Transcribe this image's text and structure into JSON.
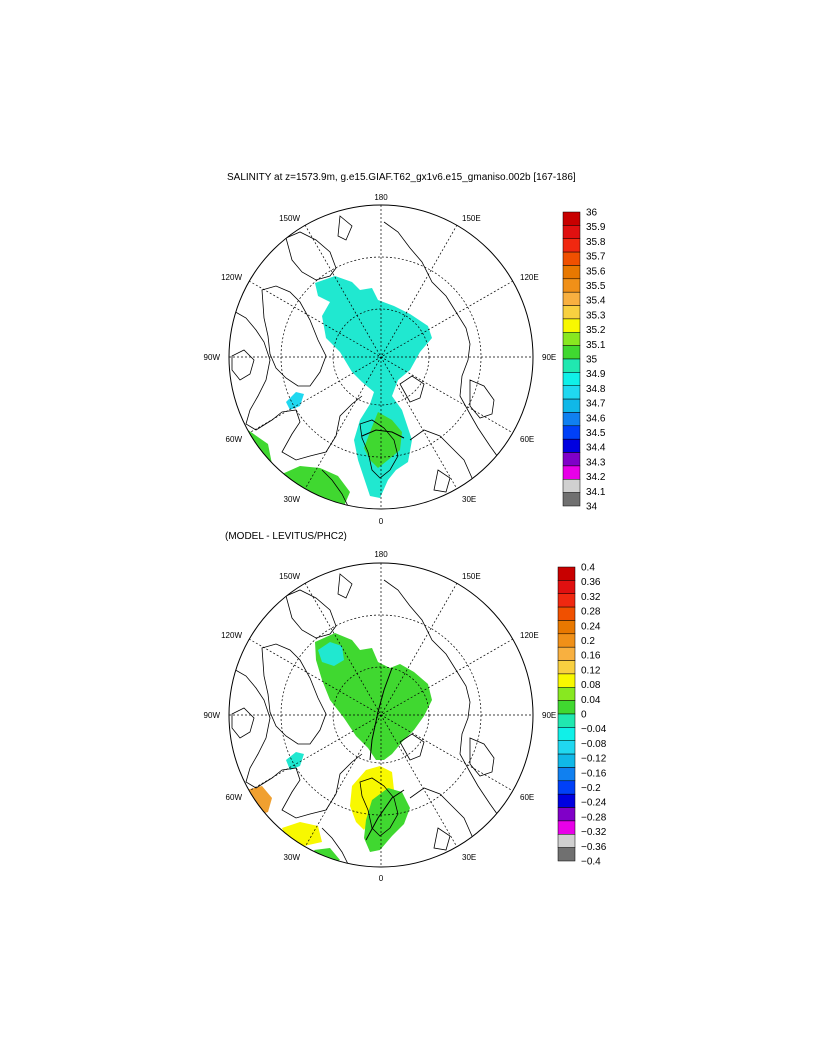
{
  "maps": [
    {
      "title": "SALINITY at z=1573.9m, g.e15.GIAF.T62_gx1v6.e15_gmaniso.002b [167-186]",
      "lon_labels": {
        "top": "180",
        "bottom": "0",
        "left": "90W",
        "right": "90E",
        "tl2": "150W",
        "tr2": "150E",
        "tl1": "120W",
        "tr1": "120E",
        "bl1": "60W",
        "br1": "60E",
        "bl2": "30W",
        "br2": "30E"
      },
      "colorbar": {
        "labels": [
          "36",
          "35.9",
          "35.8",
          "35.7",
          "35.6",
          "35.5",
          "35.4",
          "35.3",
          "35.2",
          "35.1",
          "35",
          "34.9",
          "34.8",
          "34.7",
          "34.6",
          "34.5",
          "34.4",
          "34.3",
          "34.2",
          "34.1",
          "34"
        ],
        "colors": [
          "#c80000",
          "#e01010",
          "#f02810",
          "#f05000",
          "#e87800",
          "#f09018",
          "#f8b040",
          "#f8d040",
          "#f8f800",
          "#88e820",
          "#40d830",
          "#20e8b0",
          "#10f0e8",
          "#20d8f0",
          "#10b8e8",
          "#1080f0",
          "#0040f8",
          "#0000e0",
          "#8000c8",
          "#e800e8",
          "#d0d0d0",
          "#707070"
        ]
      }
    },
    {
      "title": "(MODEL - LEVITUS/PHC2)",
      "lon_labels": {
        "top": "180",
        "bottom": "0",
        "left": "90W",
        "right": "90E",
        "tl2": "150W",
        "tr2": "150E",
        "tl1": "120W",
        "tr1": "120E",
        "bl1": "60W",
        "br1": "60E",
        "bl2": "30W",
        "br2": "30E"
      },
      "colorbar": {
        "labels": [
          "0.4",
          "0.36",
          "0.32",
          "0.28",
          "0.24",
          "0.2",
          "0.16",
          "0.12",
          "0.08",
          "0.04",
          "0",
          "−0.04",
          "−0.08",
          "−0.12",
          "−0.16",
          "−0.2",
          "−0.24",
          "−0.28",
          "−0.32",
          "−0.36",
          "−0.4"
        ],
        "colors": [
          "#c80000",
          "#e01010",
          "#f02810",
          "#f05000",
          "#e87800",
          "#f09018",
          "#f8b040",
          "#f8d040",
          "#f8f800",
          "#88e820",
          "#40d830",
          "#20e8b0",
          "#10f0e8",
          "#20d8f0",
          "#10b8e8",
          "#1080f0",
          "#0040f8",
          "#0000e0",
          "#8000c8",
          "#e800e8",
          "#d0d0d0",
          "#707070"
        ]
      }
    }
  ]
}
